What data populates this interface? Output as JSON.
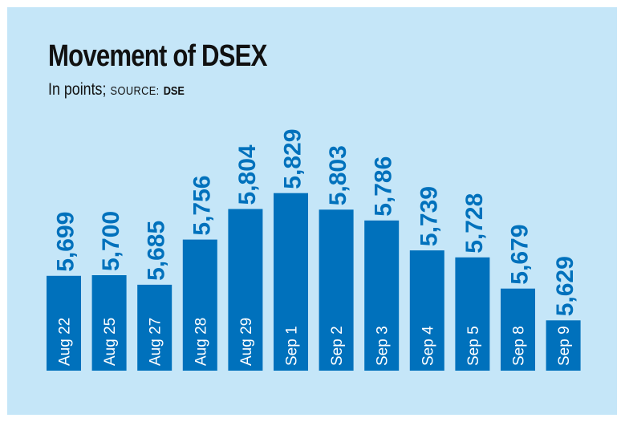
{
  "chart_data": {
    "type": "bar",
    "title": "Movement of DSEX",
    "subtitle": "In points;",
    "source_label": "SOURCE:",
    "source_value": "DSE",
    "categories": [
      "Aug 22",
      "Aug 25",
      "Aug 27",
      "Aug 28",
      "Aug 29",
      "Sep 1",
      "Sep 2",
      "Sep 3",
      "Sep 4",
      "Sep 5",
      "Sep 8",
      "Sep 9"
    ],
    "values": [
      5699,
      5700,
      5685,
      5756,
      5804,
      5829,
      5803,
      5786,
      5739,
      5728,
      5679,
      5629
    ],
    "value_labels": [
      "5,699",
      "5,700",
      "5,685",
      "5,756",
      "5,804",
      "5,829",
      "5,803",
      "5,786",
      "5,739",
      "5,728",
      "5,679",
      "5,629"
    ],
    "ylim": [
      5550,
      5845
    ],
    "xlabel": "",
    "ylabel": "",
    "grid": false,
    "bar_color": "#0071bc",
    "label_color": "#0071bc",
    "background_color": "#c5e6f8"
  }
}
